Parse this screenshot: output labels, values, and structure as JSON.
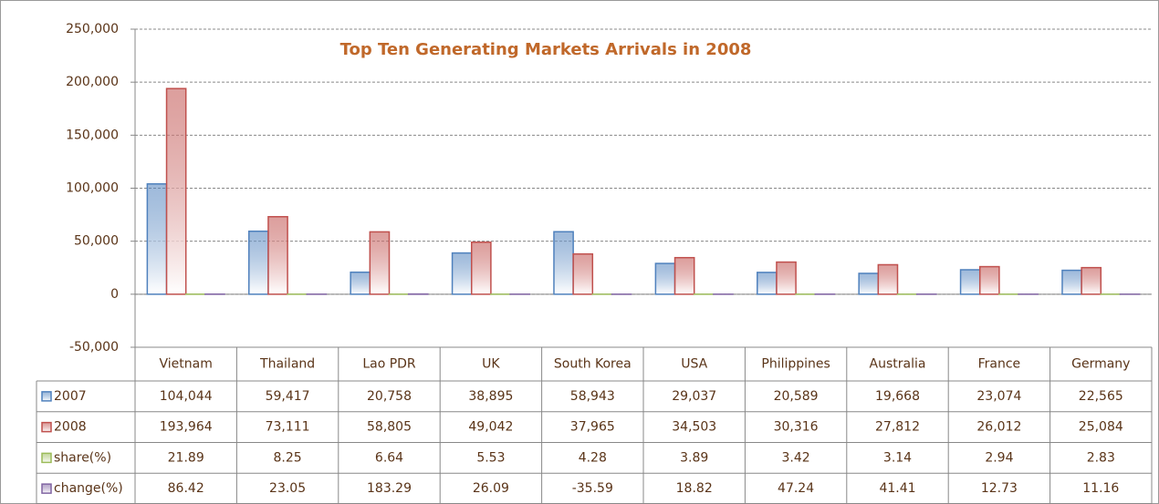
{
  "chart_data": {
    "type": "bar",
    "title": "Top Ten Generating Markets Arrivals in 2008",
    "categories": [
      "Vietnam",
      "Thailand",
      "Lao PDR",
      "UK",
      "South Korea",
      "USA",
      "Philippines",
      "Australia",
      "France",
      "Germany"
    ],
    "series": [
      {
        "name": "2007",
        "color": "#4f81bd",
        "values": [
          104044,
          59417,
          20758,
          38895,
          58943,
          29037,
          20589,
          19668,
          23074,
          22565
        ],
        "value_labels": [
          "104,044",
          "59,417",
          "20,758",
          "38,895",
          "58,943",
          "29,037",
          "20,589",
          "19,668",
          "23,074",
          "22,565"
        ]
      },
      {
        "name": "2008",
        "color": "#c0504d",
        "values": [
          193964,
          73111,
          58805,
          49042,
          37965,
          34503,
          30316,
          27812,
          26012,
          25084
        ],
        "value_labels": [
          "193,964",
          "73,111",
          "58,805",
          "49,042",
          "37,965",
          "34,503",
          "30,316",
          "27,812",
          "26,012",
          "25,084"
        ]
      },
      {
        "name": "share(%)",
        "color": "#9bbb59",
        "values": [
          21.89,
          8.25,
          6.64,
          5.53,
          4.28,
          3.89,
          3.42,
          3.14,
          2.94,
          2.83
        ]
      },
      {
        "name": "change(%)",
        "color": "#8064a2",
        "values": [
          86.42,
          23.05,
          183.29,
          26.09,
          -35.59,
          18.82,
          47.24,
          41.41,
          12.73,
          11.16
        ]
      }
    ],
    "ylim": [
      -50000,
      250000
    ],
    "yticks": [
      {
        "value": -50000,
        "label": "-50,000"
      },
      0,
      {
        "value": 50000,
        "label": "50,000"
      },
      {
        "value": 100000,
        "label": "100,000"
      },
      {
        "value": 150000,
        "label": "150,000"
      },
      {
        "value": 200000,
        "label": "200,000"
      },
      {
        "value": 250000,
        "label": "250,000"
      }
    ],
    "grid": true
  }
}
